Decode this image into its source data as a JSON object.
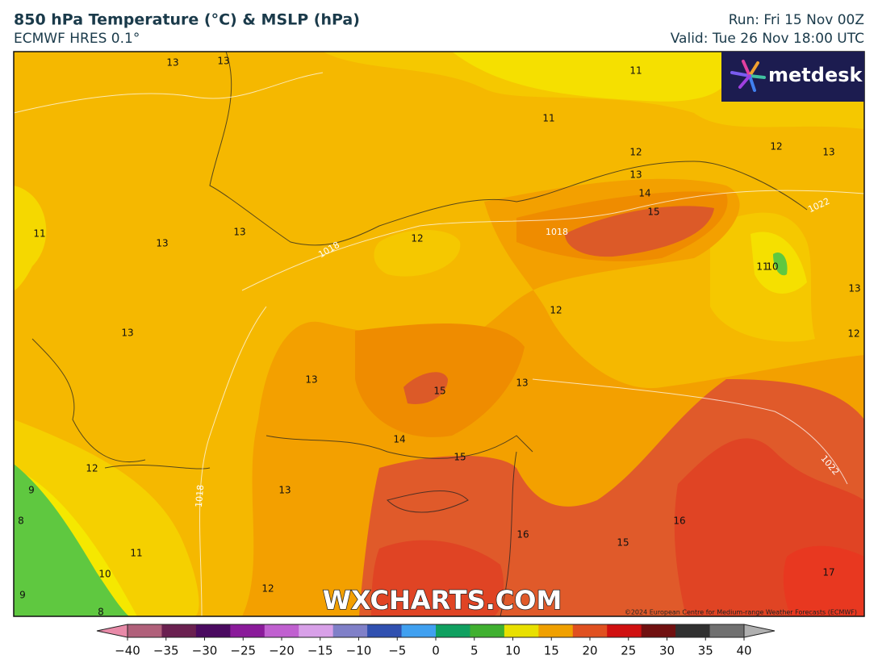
{
  "header": {
    "title": "850 hPa Temperature (°C) & MSLP (hPa)",
    "model": "ECMWF HRES 0.1°",
    "run": "Run: Fri 15 Nov 00Z",
    "valid": "Valid: Tue 26 Nov 18:00 UTC"
  },
  "logo": "metdesk",
  "watermark": "WXCHARTS.COM",
  "credit": "©2024 European Centre for Medium-range Weather Forecasts (ECMWF)",
  "temperature_labels": [
    13,
    13,
    11,
    11,
    12,
    13,
    14,
    15,
    12,
    13,
    11,
    13,
    13,
    12,
    11,
    10,
    13,
    12,
    12,
    13,
    13,
    15,
    13,
    14,
    15,
    12,
    9,
    13,
    8,
    16,
    16,
    15,
    11,
    10,
    17,
    9,
    8,
    12
  ],
  "pressure_labels": [
    1018,
    1018,
    1022,
    1022,
    1018
  ],
  "colorbar": {
    "ticks": [
      {
        "value": -40,
        "label": "−40"
      },
      {
        "value": -35,
        "label": "−35"
      },
      {
        "value": -30,
        "label": "−30"
      },
      {
        "value": -25,
        "label": "−25"
      },
      {
        "value": -20,
        "label": "−20"
      },
      {
        "value": -15,
        "label": "−15"
      },
      {
        "value": -10,
        "label": "−10"
      },
      {
        "value": -5,
        "label": "−5"
      },
      0,
      5,
      10,
      15,
      20,
      25,
      30,
      35,
      40
    ],
    "lim": [
      -40,
      40
    ],
    "colors": [
      "#e88aa8",
      "#b0607a",
      "#6a2050",
      "#4a0a60",
      "#8a1a9a",
      "#c060d0",
      "#d8a0e8",
      "#8080c8",
      "#3050b0",
      "#40a0f0",
      "#10a060",
      "#40b030",
      "#e8e000",
      "#f0a000",
      "#e05020",
      "#d01010",
      "#701010",
      "#303030",
      "#707070",
      "#b0b0b0"
    ]
  }
}
